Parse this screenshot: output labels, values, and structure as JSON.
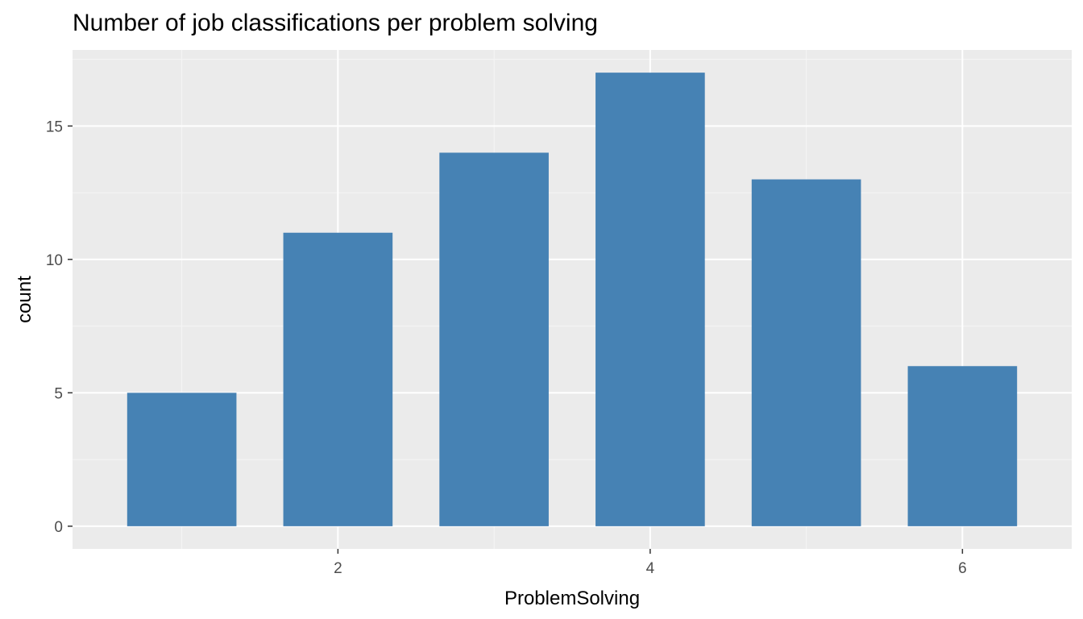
{
  "chart_data": {
    "type": "bar",
    "title": "Number of job classifications per problem solving",
    "xlabel": "ProblemSolving",
    "ylabel": "count",
    "x": [
      1,
      2,
      3,
      4,
      5,
      6
    ],
    "values": [
      5,
      11,
      14,
      17,
      13,
      6
    ],
    "xlim": [
      0.3,
      6.7
    ],
    "ylim": [
      -0.85,
      17.85
    ],
    "x_ticks": [
      2,
      4,
      6
    ],
    "y_ticks": [
      0,
      5,
      10,
      15
    ],
    "bar_width": 0.7,
    "grid": true,
    "legend": "none",
    "colors": {
      "bar": "#4682b4",
      "panel": "#ebebeb",
      "grid_major": "#ffffff",
      "grid_minor": "#f5f5f5",
      "tick_text": "#4d4d4d",
      "tick_mark": "#333333"
    }
  }
}
